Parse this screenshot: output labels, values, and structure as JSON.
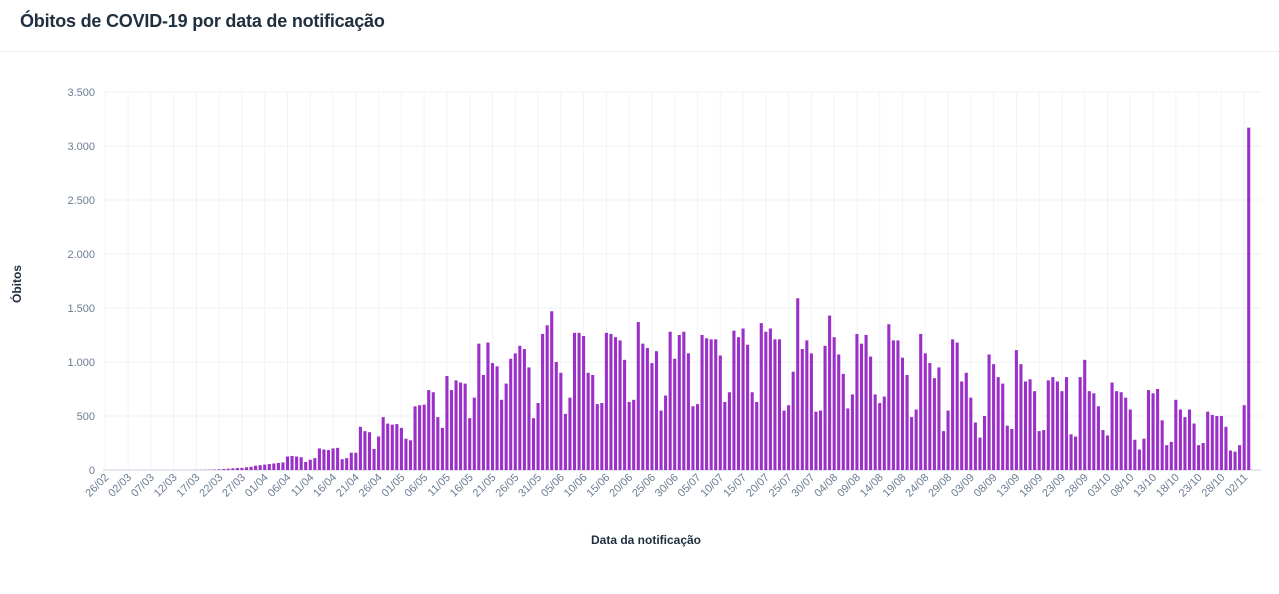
{
  "title": "Óbitos de COVID-19 por data de notificação",
  "chart_data": {
    "type": "bar",
    "color": "#9b30c8",
    "xlabel": "Data da notificação",
    "ylabel": "Óbitos",
    "ylim": [
      0,
      3500
    ],
    "yticks": [
      0,
      500,
      1000,
      1500,
      2000,
      2500,
      3000,
      3500
    ],
    "ytick_labels": [
      "0",
      "500",
      "1.000",
      "1.500",
      "2.000",
      "2.500",
      "3.000",
      "3.500"
    ],
    "xtick_labels": [
      "26/02",
      "02/03",
      "07/03",
      "12/03",
      "17/03",
      "22/03",
      "27/03",
      "01/04",
      "06/04",
      "11/04",
      "16/04",
      "21/04",
      "26/04",
      "01/05",
      "06/05",
      "11/05",
      "16/05",
      "21/05",
      "26/05",
      "31/05",
      "05/06",
      "10/06",
      "15/06",
      "20/06",
      "25/06",
      "30/06",
      "05/07",
      "10/07",
      "15/07",
      "20/07",
      "25/07",
      "30/07",
      "04/08",
      "09/08",
      "14/08",
      "19/08",
      "24/08",
      "29/08",
      "03/09",
      "08/09",
      "13/09",
      "18/09",
      "23/09",
      "28/09",
      "03/10",
      "08/10",
      "13/10",
      "18/10",
      "23/10",
      "28/10",
      "02/11"
    ],
    "tick_every": 5,
    "values": [
      0,
      0,
      0,
      0,
      0,
      0,
      0,
      0,
      0,
      0,
      0,
      0,
      0,
      0,
      0,
      0,
      0,
      0,
      0,
      0,
      1,
      1,
      2,
      3,
      4,
      6,
      9,
      12,
      15,
      18,
      20,
      25,
      30,
      40,
      45,
      50,
      55,
      60,
      65,
      70,
      125,
      130,
      125,
      118,
      75,
      95,
      110,
      200,
      190,
      185,
      200,
      205,
      100,
      110,
      160,
      160,
      400,
      360,
      350,
      195,
      310,
      490,
      430,
      420,
      425,
      390,
      290,
      275,
      590,
      600,
      605,
      740,
      720,
      490,
      390,
      870,
      740,
      830,
      810,
      800,
      480,
      670,
      1170,
      880,
      1180,
      990,
      960,
      650,
      800,
      1030,
      1080,
      1150,
      1120,
      950,
      480,
      620,
      1260,
      1340,
      1470,
      1000,
      900,
      520,
      670,
      1270,
      1270,
      1240,
      900,
      880,
      610,
      620,
      1270,
      1260,
      1230,
      1200,
      1020,
      630,
      650,
      1370,
      1170,
      1130,
      990,
      1100,
      550,
      690,
      1280,
      1030,
      1250,
      1280,
      1080,
      590,
      610,
      1250,
      1220,
      1210,
      1210,
      1060,
      630,
      720,
      1290,
      1230,
      1310,
      1160,
      720,
      630,
      1360,
      1280,
      1310,
      1210,
      1210,
      550,
      600,
      910,
      1590,
      1120,
      1200,
      1080,
      540,
      550,
      1150,
      1430,
      1230,
      1070,
      890,
      570,
      700,
      1260,
      1170,
      1250,
      1050,
      700,
      620,
      680,
      1350,
      1200,
      1200,
      1040,
      880,
      490,
      560,
      1260,
      1080,
      990,
      850,
      950,
      360,
      550,
      1210,
      1180,
      820,
      900,
      670,
      440,
      300,
      500,
      1070,
      980,
      860,
      800,
      410,
      380,
      1110,
      980,
      820,
      840,
      730,
      360,
      370,
      830,
      860,
      820,
      730,
      860,
      330,
      310,
      860,
      1020,
      730,
      710,
      590,
      370,
      320,
      810,
      730,
      720,
      670,
      560,
      280,
      190,
      290,
      740,
      710,
      750,
      460,
      230,
      260,
      650,
      560,
      490,
      560,
      430,
      230,
      250,
      540,
      510,
      500,
      500,
      400,
      180,
      170,
      230,
      600,
      3170
    ]
  }
}
